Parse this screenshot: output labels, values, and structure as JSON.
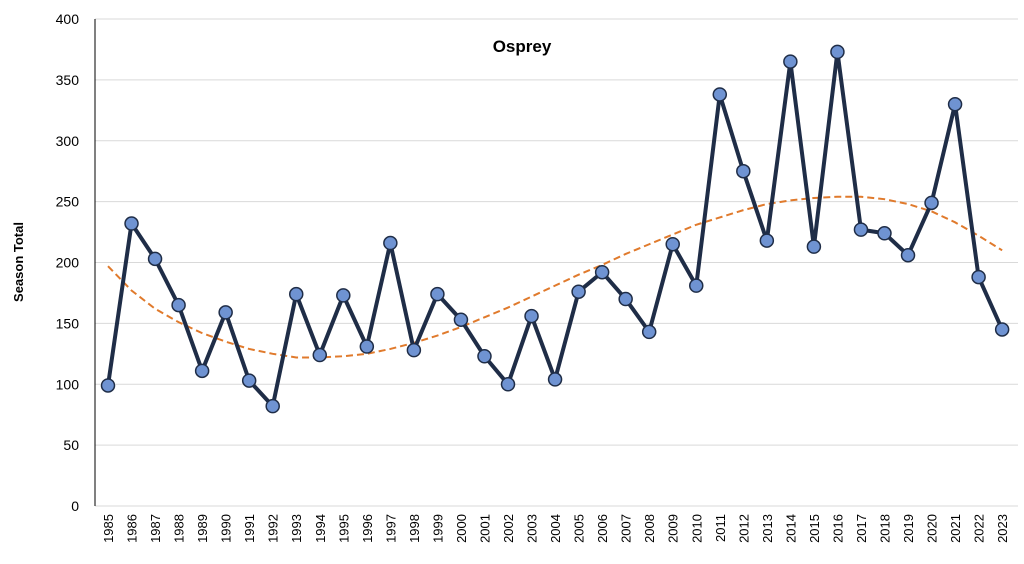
{
  "chart_data": {
    "type": "line",
    "title": "Osprey",
    "xlabel": "",
    "ylabel": "Season Total",
    "ylim": [
      0,
      400
    ],
    "yticks": [
      0,
      50,
      100,
      150,
      200,
      250,
      300,
      350,
      400
    ],
    "grid": true,
    "categories": [
      "1985",
      "1986",
      "1987",
      "1988",
      "1989",
      "1990",
      "1991",
      "1992",
      "1993",
      "1994",
      "1995",
      "1996",
      "1997",
      "1998",
      "1999",
      "2000",
      "2001",
      "2002",
      "2003",
      "2004",
      "2005",
      "2006",
      "2007",
      "2008",
      "2009",
      "2010",
      "2011",
      "2012",
      "2013",
      "2014",
      "2015",
      "2016",
      "2017",
      "2018",
      "2019",
      "2020",
      "2021",
      "2022",
      "2023"
    ],
    "series": [
      {
        "values": [
          99,
          232,
          203,
          165,
          111,
          159,
          103,
          82,
          174,
          124,
          173,
          131,
          216,
          128,
          174,
          153,
          123,
          100,
          156,
          104,
          176,
          192,
          170,
          143,
          215,
          181,
          338,
          275,
          218,
          365,
          213,
          373,
          227,
          224,
          206,
          249,
          330,
          188,
          145
        ],
        "line_color": "#1f2d47",
        "marker_fill": "#6f93d2",
        "marker_stroke": "#1f2d47"
      }
    ],
    "trendline": {
      "style": "dashed",
      "color": "#e07a2c",
      "values": [
        197,
        177,
        162,
        151,
        142,
        135,
        129,
        125,
        122,
        122,
        123,
        125,
        129,
        134,
        140,
        147,
        155,
        163,
        172,
        181,
        190,
        198,
        207,
        215,
        223,
        231,
        237,
        243,
        248,
        251,
        253,
        254,
        254,
        252,
        248,
        242,
        233,
        222,
        210
      ]
    }
  }
}
